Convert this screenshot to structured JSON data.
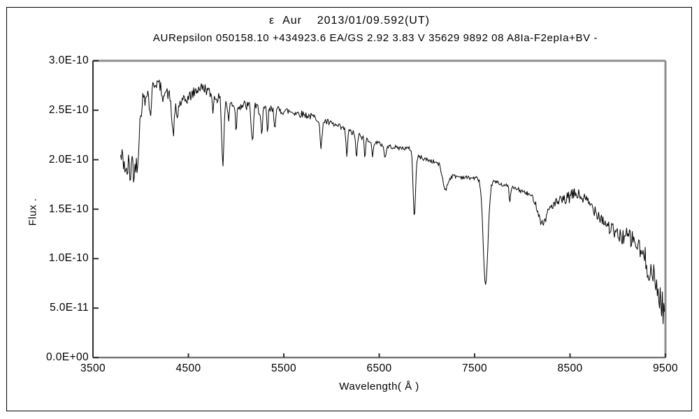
{
  "chart_data": {
    "type": "line",
    "title": "ε  Aur    2013/01/09.592(UT)",
    "title_object": "ε Aur",
    "title_datetime_ut": "2013/01/09.592(UT)",
    "subtitle": "AURepsilon 050158.10 +434923.6 EA/GS 2.92 3.83 V 35629 9892 08 A8Ia-F2epIa+BV -",
    "xlabel": "Wavelength( Å )",
    "ylabel": "Flux .",
    "xlim": [
      3500,
      9500
    ],
    "ylim": [
      0,
      3e-10
    ],
    "x_ticks": [
      3500,
      4500,
      5500,
      6500,
      7500,
      8500,
      9500
    ],
    "y_ticks": [
      {
        "value": 0.0,
        "label": "0.0E+00"
      },
      {
        "value": 5e-11,
        "label": "5.0E-11"
      },
      {
        "value": 1e-10,
        "label": "1.0E-10"
      },
      {
        "value": 1.5e-10,
        "label": "1.5E-10"
      },
      {
        "value": 2e-10,
        "label": "2.0E-10"
      },
      {
        "value": 2.5e-10,
        "label": "2.5E-10"
      },
      {
        "value": 3e-10,
        "label": "3.0E-10"
      }
    ],
    "grid": false,
    "legend": "none",
    "flux_unit_multiplier": 1e-10,
    "sample_step_angstrom": 7.5,
    "random_seed": 42,
    "colors": {
      "trace": "#000000",
      "frame_light": "#8f8f8f",
      "frame_bottom": "#787878",
      "axis_dark": "#2f2f2f",
      "text": "#000000",
      "background": "#ffffff"
    },
    "spectrum": {
      "wavelength_range": [
        3790,
        9495
      ],
      "continuum": [
        [
          3790,
          2.02
        ],
        [
          3850,
          1.97
        ],
        [
          3910,
          2.0
        ],
        [
          3955,
          2.08
        ],
        [
          3990,
          2.35
        ],
        [
          4020,
          2.62
        ],
        [
          4060,
          2.7
        ],
        [
          4120,
          2.76
        ],
        [
          4170,
          2.78
        ],
        [
          4230,
          2.72
        ],
        [
          4300,
          2.65
        ],
        [
          4345,
          2.62
        ],
        [
          4400,
          2.56
        ],
        [
          4470,
          2.6
        ],
        [
          4550,
          2.67
        ],
        [
          4620,
          2.73
        ],
        [
          4680,
          2.72
        ],
        [
          4740,
          2.65
        ],
        [
          4820,
          2.62
        ],
        [
          4900,
          2.58
        ],
        [
          5000,
          2.56
        ],
        [
          5120,
          2.54
        ],
        [
          5250,
          2.51
        ],
        [
          5400,
          2.5
        ],
        [
          5550,
          2.49
        ],
        [
          5700,
          2.46
        ],
        [
          5850,
          2.42
        ],
        [
          5950,
          2.38
        ],
        [
          6080,
          2.33
        ],
        [
          6200,
          2.28
        ],
        [
          6320,
          2.23
        ],
        [
          6450,
          2.18
        ],
        [
          6560,
          2.14
        ],
        [
          6700,
          2.12
        ],
        [
          6840,
          2.11
        ],
        [
          6910,
          2.03
        ],
        [
          7000,
          2.0
        ],
        [
          7140,
          1.96
        ],
        [
          7250,
          1.84
        ],
        [
          7400,
          1.82
        ],
        [
          7560,
          1.81
        ],
        [
          7700,
          1.78
        ],
        [
          7820,
          1.74
        ],
        [
          7950,
          1.7
        ],
        [
          8090,
          1.64
        ],
        [
          8210,
          1.61
        ],
        [
          8330,
          1.55
        ],
        [
          8440,
          1.59
        ],
        [
          8560,
          1.66
        ],
        [
          8650,
          1.6
        ],
        [
          8760,
          1.5
        ],
        [
          8880,
          1.35
        ],
        [
          9000,
          1.23
        ],
        [
          9110,
          1.22
        ],
        [
          9180,
          1.17
        ],
        [
          9270,
          1.02
        ],
        [
          9350,
          0.86
        ],
        [
          9430,
          0.65
        ],
        [
          9495,
          0.42
        ]
      ],
      "absorption_features": [
        {
          "center": 3850,
          "sigma": 10,
          "depth": 0.15
        },
        {
          "center": 3889,
          "sigma": 8,
          "depth": 0.15
        },
        {
          "center": 3934,
          "sigma": 9,
          "depth": 0.22
        },
        {
          "center": 3968,
          "sigma": 9,
          "depth": 0.2
        },
        {
          "center": 4045,
          "sigma": 6,
          "depth": 0.1
        },
        {
          "center": 4101,
          "sigma": 12,
          "depth": 0.28
        },
        {
          "center": 4226,
          "sigma": 7,
          "depth": 0.14
        },
        {
          "center": 4340,
          "sigma": 14,
          "depth": 0.36
        },
        {
          "center": 4383,
          "sigma": 8,
          "depth": 0.16
        },
        {
          "center": 4760,
          "sigma": 6,
          "depth": 0.14
        },
        {
          "center": 4861,
          "sigma": 11,
          "depth": 0.65
        },
        {
          "center": 4920,
          "sigma": 8,
          "depth": 0.18
        },
        {
          "center": 5000,
          "sigma": 8,
          "depth": 0.24
        },
        {
          "center": 5170,
          "sigma": 10,
          "depth": 0.36
        },
        {
          "center": 5270,
          "sigma": 8,
          "depth": 0.28
        },
        {
          "center": 5330,
          "sigma": 7,
          "depth": 0.22
        },
        {
          "center": 5405,
          "sigma": 7,
          "depth": 0.16
        },
        {
          "center": 5890,
          "sigma": 10,
          "depth": 0.3
        },
        {
          "center": 6160,
          "sigma": 8,
          "depth": 0.26
        },
        {
          "center": 6262,
          "sigma": 8,
          "depth": 0.25
        },
        {
          "center": 6350,
          "sigma": 7,
          "depth": 0.2
        },
        {
          "center": 6430,
          "sigma": 7,
          "depth": 0.18
        },
        {
          "center": 6563,
          "sigma": 10,
          "depth": 0.12
        },
        {
          "center": 6868,
          "sigma": 13,
          "depth": 0.64
        },
        {
          "center": 7190,
          "sigma": 28,
          "depth": 0.2
        },
        {
          "center": 7615,
          "sigma": 25,
          "depth": 1.08
        },
        {
          "center": 7870,
          "sigma": 7,
          "depth": 0.16
        },
        {
          "center": 8210,
          "sigma": 45,
          "depth": 0.25
        }
      ],
      "noise_amplitude": [
        [
          3790,
          0.14
        ],
        [
          3950,
          0.12
        ],
        [
          4010,
          0.07
        ],
        [
          4150,
          0.06
        ],
        [
          4500,
          0.06
        ],
        [
          4900,
          0.05
        ],
        [
          5200,
          0.06
        ],
        [
          5500,
          0.04
        ],
        [
          5900,
          0.035
        ],
        [
          6300,
          0.03
        ],
        [
          6600,
          0.02
        ],
        [
          7000,
          0.022
        ],
        [
          7500,
          0.02
        ],
        [
          7900,
          0.02
        ],
        [
          8150,
          0.03
        ],
        [
          8400,
          0.06
        ],
        [
          8700,
          0.07
        ],
        [
          9000,
          0.08
        ],
        [
          9200,
          0.11
        ],
        [
          9350,
          0.15
        ],
        [
          9495,
          0.17
        ]
      ]
    }
  }
}
